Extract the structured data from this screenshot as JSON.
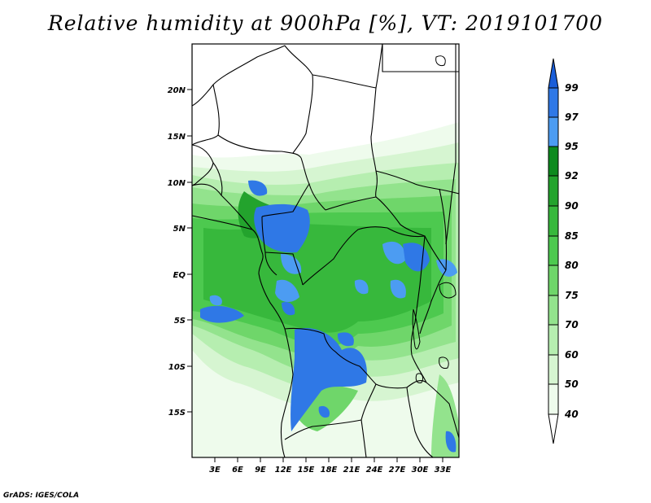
{
  "title": "Relative humidity at 900hPa [%], VT: 2019101700",
  "credit": "GrADS: IGES/COLA",
  "map": {
    "lat_ticks": [
      "20N",
      "15N",
      "10N",
      "5N",
      "EQ",
      "5S",
      "10S",
      "15S"
    ],
    "lon_ticks": [
      "3E",
      "6E",
      "9E",
      "12E",
      "15E",
      "18E",
      "21E",
      "24E",
      "27E",
      "30E",
      "33E"
    ],
    "lon_range": [
      0,
      35
    ],
    "lat_range": [
      -20,
      25
    ]
  },
  "colorbar": {
    "levels": [
      "99",
      "97",
      "95",
      "92",
      "90",
      "85",
      "80",
      "75",
      "70",
      "60",
      "50",
      "40"
    ],
    "colors": [
      "#1a5ed9",
      "#2f78e6",
      "#4c9cf2",
      "#0d8a1e",
      "#23a32d",
      "#37b83c",
      "#4dc94f",
      "#6fd66a",
      "#93e38d",
      "#b6eeb0",
      "#d6f5d1",
      "#eefbec",
      "#ffffff"
    ]
  }
}
